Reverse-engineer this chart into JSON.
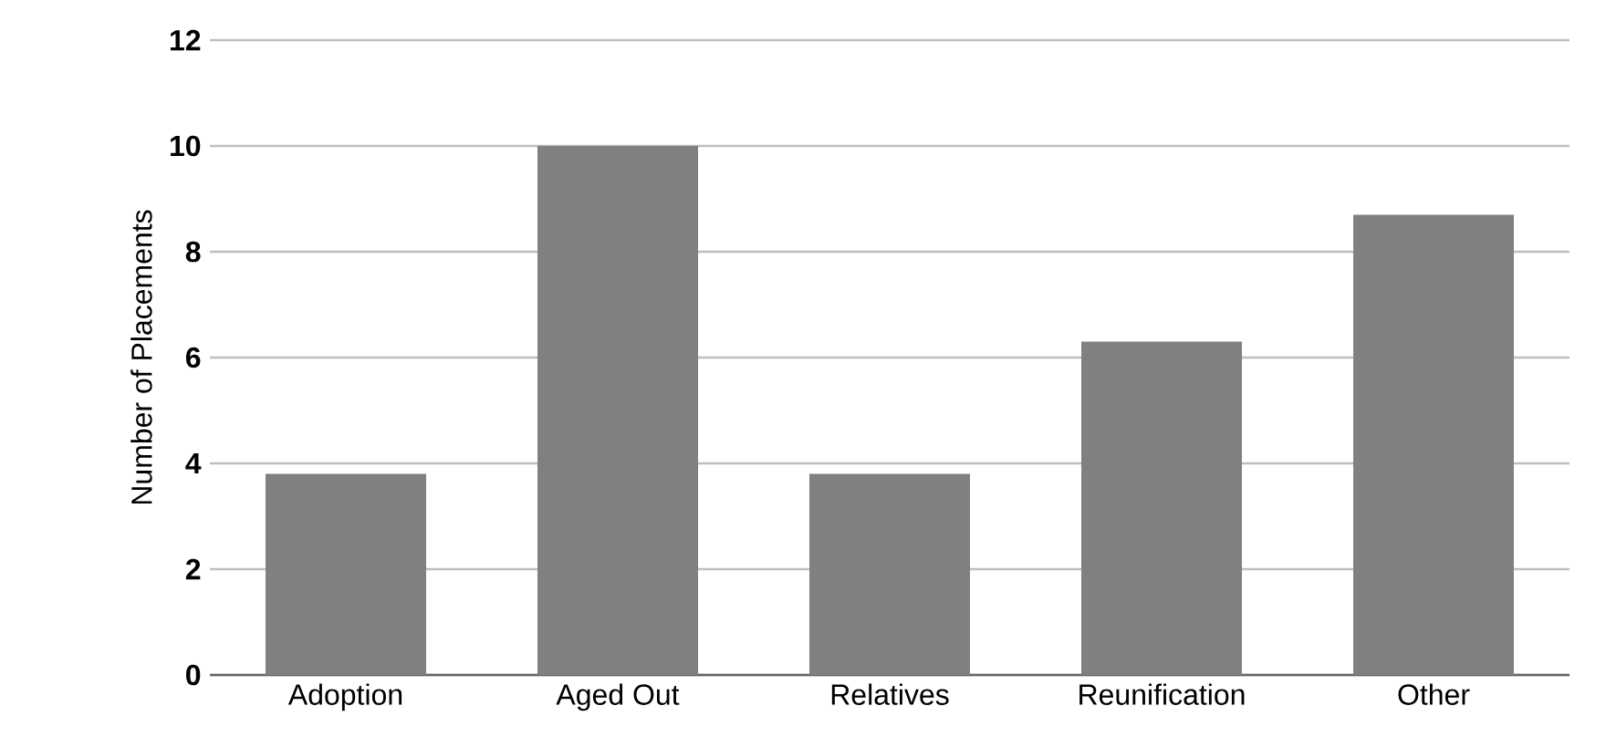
{
  "chart_data": {
    "type": "bar",
    "ylabel": "Number of Placements",
    "categories": [
      "Adoption",
      "Aged Out",
      "Relatives",
      "Reunification",
      "Other"
    ],
    "values": [
      3.8,
      10,
      3.8,
      6.3,
      8.7
    ],
    "color": "#808080",
    "ylim": [
      0,
      12
    ],
    "yticks": [
      0,
      2,
      4,
      6,
      8,
      10,
      12
    ],
    "grid": "y"
  }
}
